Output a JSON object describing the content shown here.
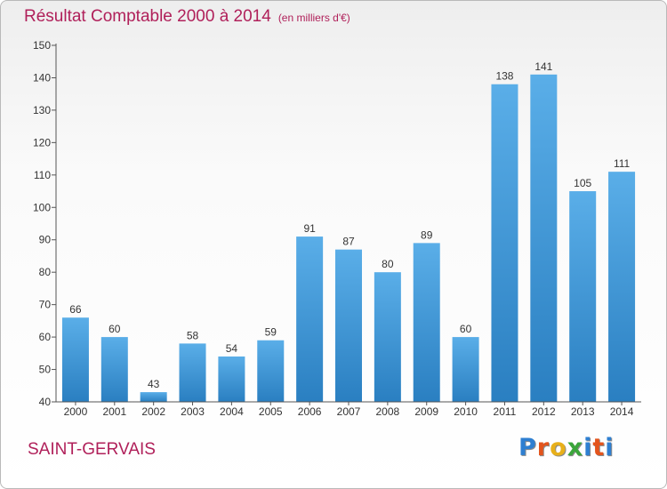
{
  "header": {
    "title": "Résultat Comptable 2000 à 2014",
    "subtitle": "(en milliers d'€)"
  },
  "footer": {
    "place": "SAINT-GERVAIS",
    "logo": "Proxiti",
    "logo_colors": [
      "#2e7fd1",
      "#e3541c",
      "#e8b01a",
      "#3aa53a",
      "#2e7fd1",
      "#e3541c",
      "#2e7fd1"
    ]
  },
  "chart_data": {
    "type": "bar",
    "title": "Résultat Comptable 2000 à 2014",
    "subtitle": "(en milliers d'€)",
    "xlabel": "",
    "ylabel": "",
    "categories": [
      "2000",
      "2001",
      "2002",
      "2003",
      "2004",
      "2005",
      "2006",
      "2007",
      "2008",
      "2009",
      "2010",
      "2011",
      "2012",
      "2013",
      "2014"
    ],
    "values": [
      66,
      60,
      43,
      58,
      54,
      59,
      91,
      87,
      80,
      89,
      60,
      138,
      141,
      105,
      111
    ],
    "ylim": [
      40,
      150
    ],
    "yticks": [
      40,
      50,
      60,
      70,
      80,
      90,
      100,
      110,
      120,
      130,
      140,
      150
    ],
    "grid": false,
    "legend": "none",
    "colors": {
      "bar_light": "#5aaee8",
      "bar_dark": "#2a7fc1",
      "axis": "#555555"
    }
  }
}
